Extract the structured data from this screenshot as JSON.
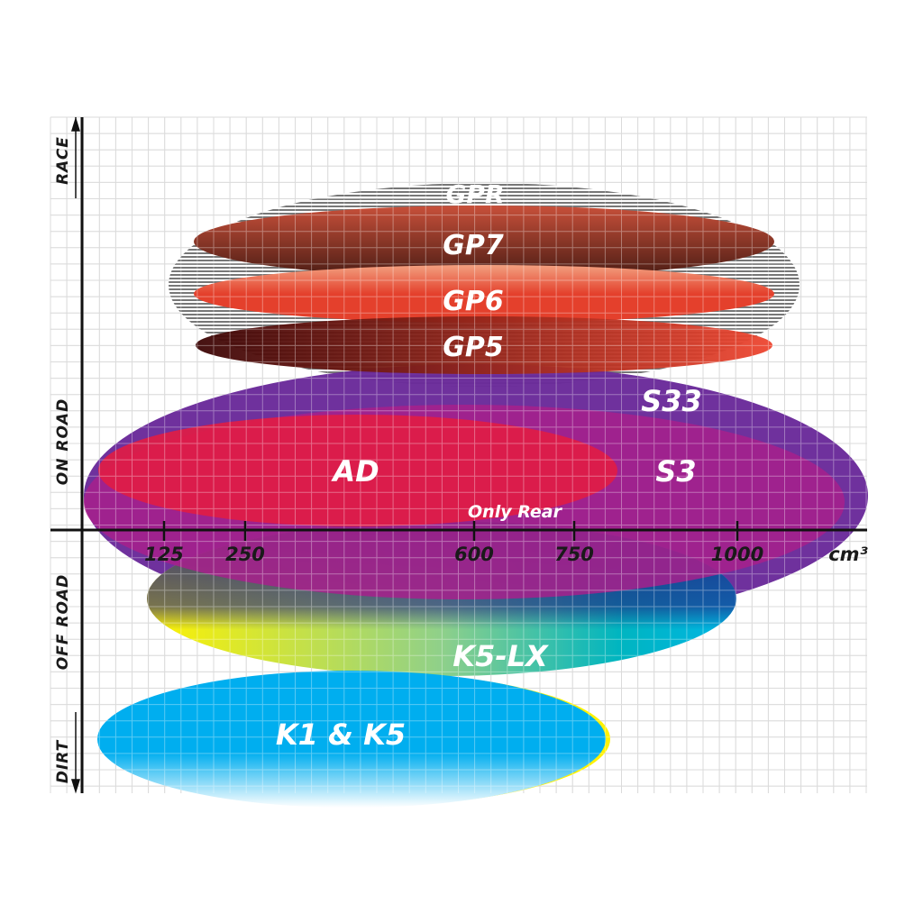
{
  "axes": {
    "x_unit": "cm³",
    "x_ticks": [
      "125",
      "250",
      "600",
      "750",
      "1000"
    ],
    "y_categories": [
      "RACE",
      "ON ROAD",
      "OFF ROAD",
      "DIRT"
    ]
  },
  "tires": [
    {
      "name": "GPR",
      "colors": [
        "#8a8a8a",
        "#ffffff"
      ]
    },
    {
      "name": "GP7",
      "colors": [
        "#c8503a",
        "#4a1c14"
      ]
    },
    {
      "name": "GP6",
      "colors": [
        "#f2a080",
        "#e4402c"
      ]
    },
    {
      "name": "GP5",
      "colors": [
        "#3c0606",
        "#ee4630"
      ]
    },
    {
      "name": "S33",
      "colors": [
        "#6a2a9a"
      ]
    },
    {
      "name": "S3",
      "colors": [
        "#a8208c"
      ]
    },
    {
      "name": "AD",
      "colors": [
        "#e01c45"
      ]
    },
    {
      "name": "Only Rear",
      "colors": []
    },
    {
      "name": "K5-LX",
      "colors": [
        "#fff200",
        "#00b5d6"
      ]
    },
    {
      "name": "K1 & K5",
      "colors": [
        "#00aeef",
        "#ffffff"
      ]
    }
  ]
}
